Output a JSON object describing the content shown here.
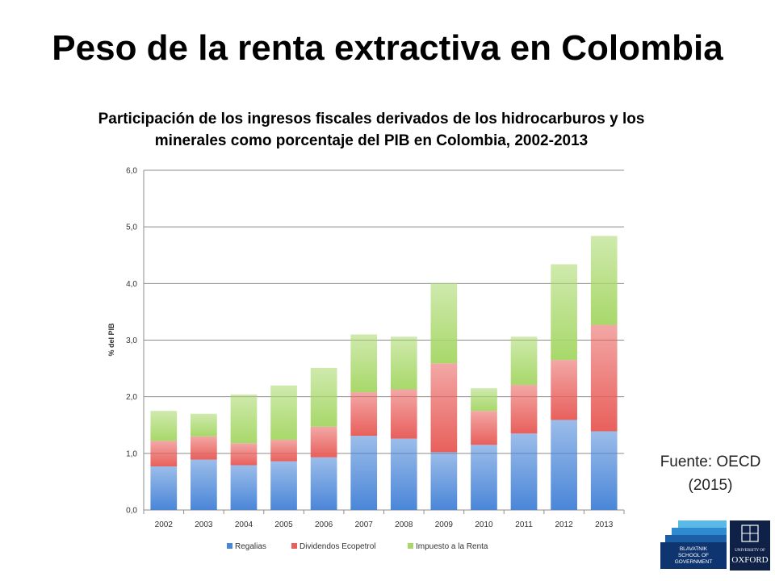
{
  "slide": {
    "title": "Peso de la renta extractiva en Colombia",
    "source": "Fuente: OECD\n(2015)"
  },
  "logos": {
    "blavatnik": "BLAVATNIK\nSCHOOL OF\nGOVERNMENT",
    "oxford_small": "UNIVERSITY OF",
    "oxford": "OXFORD"
  },
  "chart_data": {
    "type": "bar",
    "stacked": true,
    "title": "Participación de los ingresos fiscales derivados de los hidrocarburos y los\nminerales como porcentaje del PIB en Colombia, 2002-2013",
    "ylabel": "% del PIB",
    "xlabel": "",
    "ylim": [
      0,
      6
    ],
    "yticks": [
      "0,0",
      "1,0",
      "2,0",
      "3,0",
      "4,0",
      "5,0",
      "6,0"
    ],
    "grid": true,
    "legend_position": "bottom",
    "categories": [
      "2002",
      "2003",
      "2004",
      "2005",
      "2006",
      "2007",
      "2008",
      "2009",
      "2010",
      "2011",
      "2012",
      "2013"
    ],
    "series": [
      {
        "name": "Regalias",
        "color": "#4a86d8",
        "values": [
          0.77,
          0.89,
          0.79,
          0.86,
          0.93,
          1.31,
          1.26,
          1.02,
          1.15,
          1.35,
          1.59,
          1.39
        ]
      },
      {
        "name": "Dividendos Ecopetrol",
        "color": "#e8605c",
        "values": [
          0.45,
          0.41,
          0.39,
          0.38,
          0.54,
          0.77,
          0.87,
          1.57,
          0.6,
          0.86,
          1.06,
          1.88
        ]
      },
      {
        "name": "Impuesto a la Renta",
        "color": "#a8d86a",
        "values": [
          0.53,
          0.4,
          0.86,
          0.96,
          1.04,
          1.02,
          0.93,
          1.42,
          0.4,
          0.85,
          1.69,
          1.57
        ]
      }
    ]
  }
}
